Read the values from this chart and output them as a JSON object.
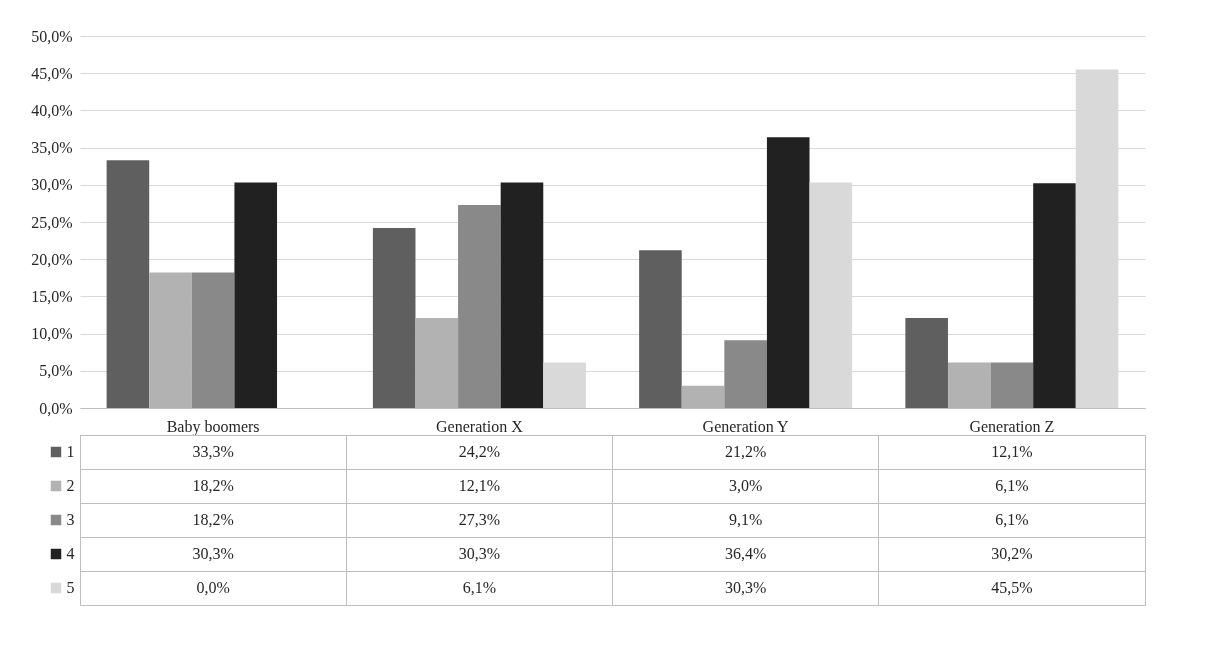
{
  "chart_data": {
    "type": "bar",
    "categories": [
      "Baby boomers",
      "Generation X",
      "Generation Y",
      "Generation Z"
    ],
    "series": [
      {
        "name": "1",
        "color": "#5f5f5f",
        "values": [
          33.3,
          24.2,
          21.2,
          12.1
        ],
        "value_labels": [
          "33,3%",
          "24,2%",
          "21,2%",
          "12,1%"
        ]
      },
      {
        "name": "2",
        "color": "#b2b2b2",
        "values": [
          18.2,
          12.1,
          3.0,
          6.1
        ],
        "value_labels": [
          "18,2%",
          "12,1%",
          "3,0%",
          "6,1%"
        ]
      },
      {
        "name": "3",
        "color": "#898989",
        "values": [
          18.2,
          27.3,
          9.1,
          6.1
        ],
        "value_labels": [
          "18,2%",
          "27,3%",
          "9,1%",
          "6,1%"
        ]
      },
      {
        "name": "4",
        "color": "#212121",
        "values": [
          30.3,
          30.3,
          36.4,
          30.2
        ],
        "value_labels": [
          "30,3%",
          "30,3%",
          "36,4%",
          "30,2%"
        ]
      },
      {
        "name": "5",
        "color": "#d9d9d9",
        "values": [
          0.0,
          6.1,
          30.3,
          45.5
        ],
        "value_labels": [
          "0,0%",
          "6,1%",
          "30,3%",
          "45,5%"
        ]
      }
    ],
    "ylim": [
      0,
      50
    ],
    "yticks": [
      {
        "value": 0,
        "label": "0,0%"
      },
      {
        "value": 5,
        "label": "5,0%"
      },
      {
        "value": 10,
        "label": "10,0%"
      },
      {
        "value": 15,
        "label": "15,0%"
      },
      {
        "value": 20,
        "label": "20,0%"
      },
      {
        "value": 25,
        "label": "25,0%"
      },
      {
        "value": 30,
        "label": "30,0%"
      },
      {
        "value": 35,
        "label": "35,0%"
      },
      {
        "value": 40,
        "label": "40,0%"
      },
      {
        "value": 45,
        "label": "45,0%"
      },
      {
        "value": 50,
        "label": "50,0%"
      }
    ],
    "grid": "y",
    "legend": "bottom left"
  }
}
